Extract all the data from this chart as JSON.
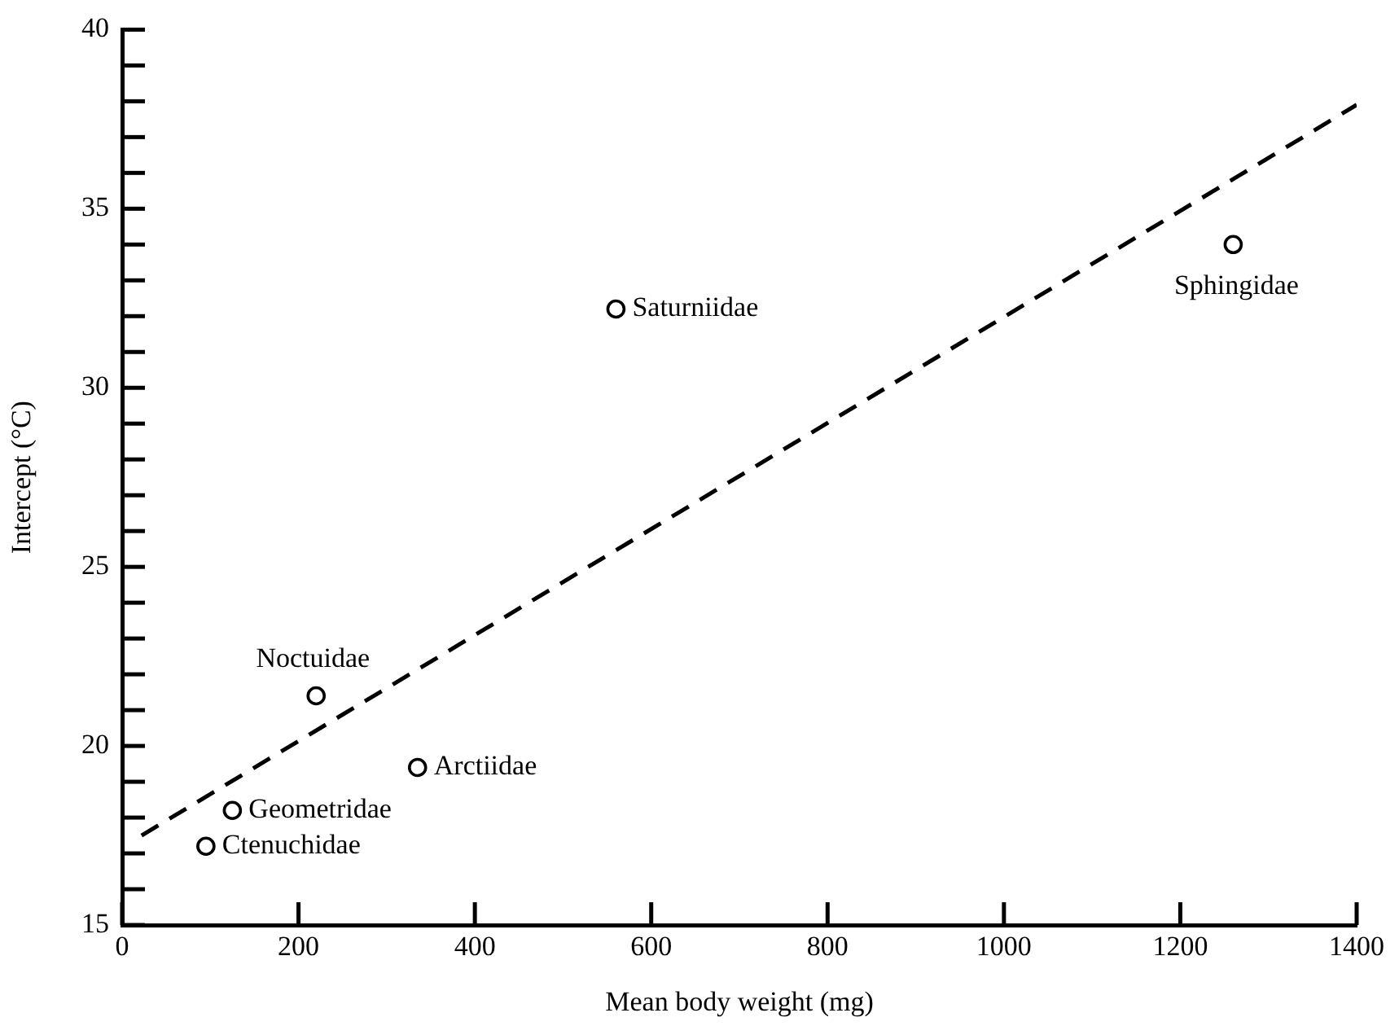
{
  "chart_data": {
    "type": "scatter",
    "xlabel": "Mean body weight (mg)",
    "ylabel": "Intercept (°C)",
    "x": [
      95,
      125,
      220,
      335,
      560,
      1260
    ],
    "series": [
      {
        "color": "#000000",
        "marker": "circle",
        "values": [
          17.2,
          18.2,
          21.4,
          19.4,
          32.2,
          34.0
        ]
      },
      {
        "type": "line",
        "color": "#000000",
        "line_style": "dashed",
        "marker": "none",
        "x": [
          22,
          1400
        ],
        "values": [
          17.5,
          37.9
        ]
      }
    ],
    "xlim": [
      0,
      1400
    ],
    "xticks": [
      0,
      200,
      400,
      600,
      800,
      1000,
      1200,
      1400
    ],
    "ylim": [
      15,
      40
    ],
    "yticks": [
      15,
      {
        "value": 16,
        "label": null
      },
      {
        "value": 17,
        "label": null
      },
      {
        "value": 18,
        "label": null
      },
      {
        "value": 19,
        "label": null
      },
      20,
      {
        "value": 21,
        "label": null
      },
      {
        "value": 22,
        "label": null
      },
      {
        "value": 23,
        "label": null
      },
      {
        "value": 24,
        "label": null
      },
      25,
      {
        "value": 26,
        "label": null
      },
      {
        "value": 27,
        "label": null
      },
      {
        "value": 28,
        "label": null
      },
      {
        "value": 29,
        "label": null
      },
      30,
      {
        "value": 31,
        "label": null
      },
      {
        "value": 32,
        "label": null
      },
      {
        "value": 33,
        "label": null
      },
      {
        "value": 34,
        "label": null
      },
      35,
      {
        "value": 36,
        "label": null
      },
      {
        "value": 37,
        "label": null
      },
      {
        "value": 38,
        "label": null
      },
      {
        "value": 39,
        "label": null
      },
      40
    ],
    "grid": false,
    "legend": false,
    "annotations": [
      {
        "text": "Ctenuchidae",
        "x": 95,
        "y": 17.2
      },
      {
        "text": "Geometridae",
        "x": 125,
        "y": 18.2
      },
      {
        "text": "Noctuidae",
        "x": 220,
        "y": 21.4
      },
      {
        "text": "Arctiidae",
        "x": 335,
        "y": 19.4
      },
      {
        "text": "Saturniidae",
        "x": 560,
        "y": 32.2
      },
      {
        "text": "Sphingidae",
        "x": 1260,
        "y": 34.0
      }
    ]
  }
}
